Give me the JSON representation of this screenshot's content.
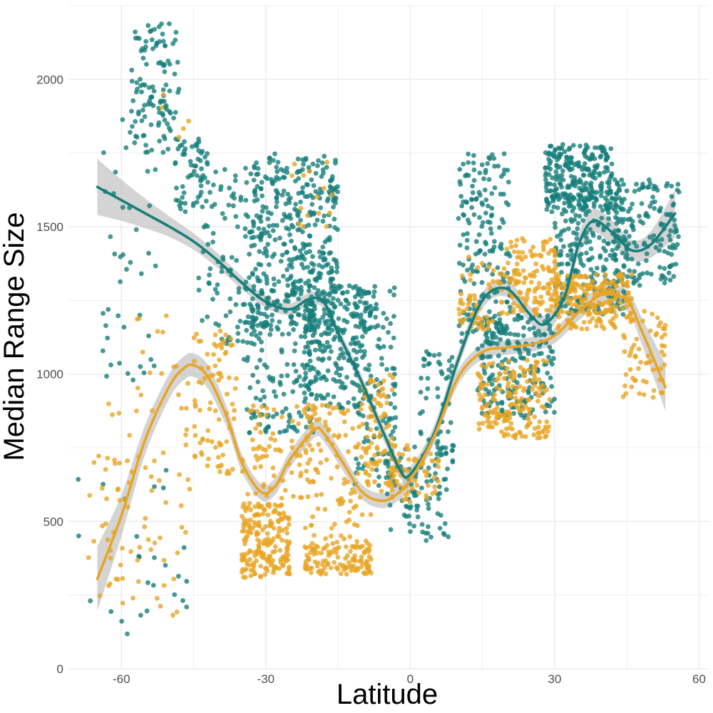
{
  "chart_data": {
    "type": "scatter",
    "title": "",
    "xlabel": "Latitude",
    "ylabel": "Median Range Size",
    "xlim": [
      -71,
      62
    ],
    "ylim": [
      0,
      2250
    ],
    "x_ticks": [
      "-60",
      "-30",
      "0",
      "30",
      "60"
    ],
    "y_ticks": [
      "0",
      "500",
      "1000",
      "1500",
      "2000"
    ],
    "x_tick_values": [
      -60,
      -30,
      0,
      30,
      60
    ],
    "y_tick_values": [
      0,
      500,
      1000,
      1500,
      2000
    ],
    "grid": true,
    "legend": "none",
    "colors": {
      "teal": "#177e7a",
      "orange": "#e8a524",
      "band": "#bdbdbd",
      "grid": "#ebebeb",
      "tick": "#4d4d4d"
    },
    "series": [
      {
        "name": "teal",
        "color": "#177e7a",
        "smooth_x": [
          -65,
          -60,
          -55,
          -50,
          -45,
          -40,
          -35,
          -30,
          -25,
          -21,
          -18,
          -15,
          -10,
          -5,
          -2,
          0,
          5,
          10,
          15,
          20,
          25,
          28,
          32,
          35,
          38,
          42,
          46,
          50,
          55
        ],
        "smooth_y": [
          1635,
          1590,
          1545,
          1500,
          1450,
          1385,
          1310,
          1245,
          1220,
          1255,
          1245,
          1140,
          970,
          780,
          670,
          660,
          800,
          1050,
          1250,
          1290,
          1200,
          1170,
          1260,
          1440,
          1520,
          1480,
          1420,
          1440,
          1545
        ],
        "band_half": [
          95,
          70,
          50,
          35,
          28,
          25,
          22,
          20,
          20,
          22,
          22,
          22,
          22,
          25,
          25,
          25,
          28,
          28,
          28,
          28,
          28,
          30,
          30,
          35,
          40,
          40,
          35,
          45,
          80
        ],
        "clusters": [
          {
            "x": [
              -58,
              -48
            ],
            "y": [
              1750,
              2190
            ],
            "n": 110
          },
          {
            "x": [
              -49,
              -42
            ],
            "y": [
              1550,
              1800
            ],
            "n": 60
          },
          {
            "x": [
              -64,
              -52
            ],
            "y": [
              950,
              1900
            ],
            "n": 45
          },
          {
            "x": [
              -58,
              -46
            ],
            "y": [
              180,
              420
            ],
            "n": 14
          },
          {
            "x": [
              -44,
              -33
            ],
            "y": [
              1100,
              1700
            ],
            "n": 90
          },
          {
            "x": [
              -33,
              -15
            ],
            "y": [
              1150,
              1750
            ],
            "n": 420
          },
          {
            "x": [
              -35,
              -20
            ],
            "y": [
              800,
              1300
            ],
            "n": 150
          },
          {
            "x": [
              -22,
              -8
            ],
            "y": [
              880,
              1300
            ],
            "n": 240
          },
          {
            "x": [
              -12,
              -3
            ],
            "y": [
              620,
              1300
            ],
            "n": 120
          },
          {
            "x": [
              -5,
              8
            ],
            "y": [
              430,
              760
            ],
            "n": 90
          },
          {
            "x": [
              2,
              9
            ],
            "y": [
              700,
              1080
            ],
            "n": 50
          },
          {
            "x": [
              10,
              21
            ],
            "y": [
              1100,
              1750
            ],
            "n": 180
          },
          {
            "x": [
              14,
              30
            ],
            "y": [
              850,
              1200
            ],
            "n": 220
          },
          {
            "x": [
              28,
              42
            ],
            "y": [
              1550,
              1780
            ],
            "n": 250
          },
          {
            "x": [
              30,
              45
            ],
            "y": [
              1200,
              1650
            ],
            "n": 250
          },
          {
            "x": [
              42,
              56
            ],
            "y": [
              1300,
              1660
            ],
            "n": 160
          },
          {
            "x": [
              -70,
              -50
            ],
            "y": [
              80,
              800
            ],
            "n": 12
          }
        ]
      },
      {
        "name": "orange",
        "color": "#e8a524",
        "smooth_x": [
          -65,
          -60,
          -55,
          -50,
          -47,
          -45,
          -42,
          -38,
          -35,
          -31,
          -28,
          -25,
          -20,
          -18,
          -14,
          -10,
          -6,
          -3,
          0,
          5,
          10,
          15,
          20,
          25,
          30,
          35,
          40,
          45,
          48,
          53
        ],
        "smooth_y": [
          305,
          520,
          780,
          960,
          1020,
          1030,
          990,
          850,
          700,
          600,
          620,
          710,
          810,
          800,
          700,
          600,
          570,
          590,
          640,
          790,
          990,
          1075,
          1090,
          1100,
          1130,
          1210,
          1270,
          1250,
          1150,
          955
        ],
        "band_half": [
          110,
          70,
          50,
          42,
          40,
          40,
          40,
          35,
          30,
          28,
          28,
          28,
          28,
          28,
          28,
          25,
          25,
          25,
          25,
          25,
          25,
          25,
          25,
          25,
          25,
          28,
          32,
          35,
          45,
          80
        ],
        "clusters": [
          {
            "x": [
              -67,
              -56
            ],
            "y": [
              220,
              900
            ],
            "n": 45
          },
          {
            "x": [
              -57,
              -45
            ],
            "y": [
              400,
              1200
            ],
            "n": 40
          },
          {
            "x": [
              -45,
              -36
            ],
            "y": [
              650,
              1150
            ],
            "n": 80
          },
          {
            "x": [
              -35,
              -25
            ],
            "y": [
              310,
              560
            ],
            "n": 200
          },
          {
            "x": [
              -35,
              -20
            ],
            "y": [
              560,
              900
            ],
            "n": 80
          },
          {
            "x": [
              -22,
              -8
            ],
            "y": [
              320,
              420
            ],
            "n": 120
          },
          {
            "x": [
              -22,
              -8
            ],
            "y": [
              420,
              900
            ],
            "n": 110
          },
          {
            "x": [
              -10,
              -3
            ],
            "y": [
              600,
              1000
            ],
            "n": 80
          },
          {
            "x": [
              -4,
              6
            ],
            "y": [
              560,
              760
            ],
            "n": 60
          },
          {
            "x": [
              10,
              20
            ],
            "y": [
              1150,
              1400
            ],
            "n": 60
          },
          {
            "x": [
              14,
              29
            ],
            "y": [
              780,
              1050
            ],
            "n": 180
          },
          {
            "x": [
              20,
              31
            ],
            "y": [
              1200,
              1460
            ],
            "n": 140
          },
          {
            "x": [
              30,
              46
            ],
            "y": [
              1150,
              1340
            ],
            "n": 200
          },
          {
            "x": [
              44,
              53
            ],
            "y": [
              920,
              1220
            ],
            "n": 60
          },
          {
            "x": [
              -52,
              -42
            ],
            "y": [
              1750,
              2010
            ],
            "n": 5
          },
          {
            "x": [
              -25,
              -15
            ],
            "y": [
              1500,
              1730
            ],
            "n": 15
          },
          {
            "x": [
              -53,
              -48
            ],
            "y": [
              180,
              400
            ],
            "n": 8
          }
        ]
      }
    ]
  }
}
